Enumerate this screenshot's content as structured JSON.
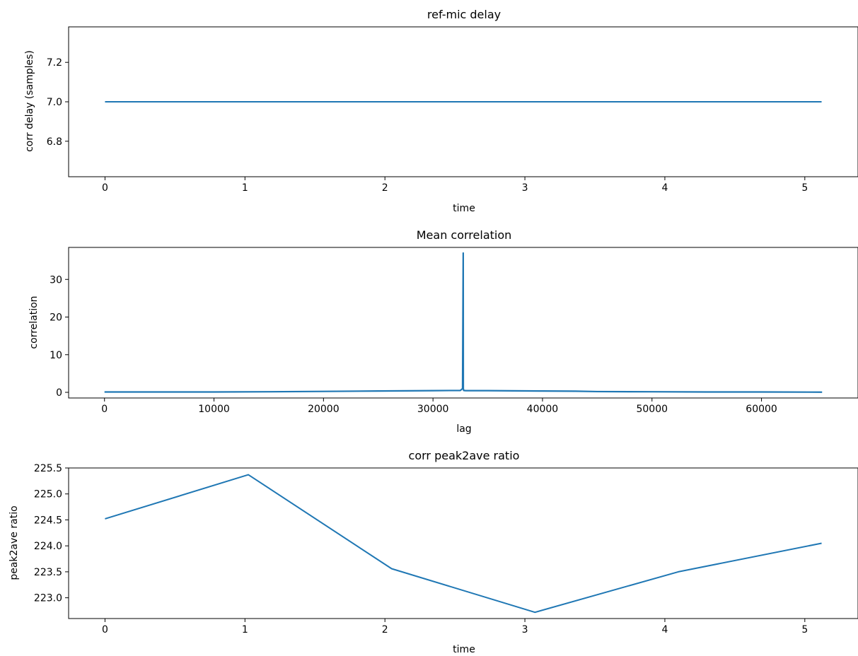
{
  "chart_data": [
    {
      "type": "line",
      "title": "ref-mic delay",
      "xlabel": "time",
      "ylabel": "corr delay (samples)",
      "xlim": [
        -0.26,
        5.38
      ],
      "ylim": [
        6.62,
        7.38
      ],
      "xticks": [
        0,
        1,
        2,
        3,
        4,
        5
      ],
      "yticks": [
        6.8,
        7.0,
        7.2
      ],
      "xtick_labels": [
        "0",
        "1",
        "2",
        "3",
        "4",
        "5"
      ],
      "ytick_labels": [
        "6.8",
        "7.0",
        "7.2"
      ],
      "grid": false,
      "color": "#1f77b4",
      "series": [
        {
          "x": [
            0,
            1.024,
            2.048,
            3.072,
            4.096,
            5.12
          ],
          "y": [
            7.0,
            7.0,
            7.0,
            7.0,
            7.0,
            7.0
          ]
        }
      ]
    },
    {
      "type": "line",
      "title": "Mean correlation",
      "xlabel": "lag",
      "ylabel": "correlation",
      "xlim": [
        -3277,
        68813
      ],
      "ylim": [
        -1.5,
        38.5
      ],
      "xticks": [
        0,
        10000,
        20000,
        30000,
        40000,
        50000,
        60000
      ],
      "yticks": [
        0,
        10,
        20,
        30
      ],
      "xtick_labels": [
        "0",
        "10000",
        "20000",
        "30000",
        "40000",
        "50000",
        "60000"
      ],
      "ytick_labels": [
        "0",
        "10",
        "20",
        "30"
      ],
      "grid": false,
      "color": "#1f77b4",
      "series": [
        {
          "x": [
            0,
            5000,
            10000,
            15000,
            20000,
            25000,
            30000,
            32500,
            32700,
            32760,
            32770,
            32800,
            33000,
            35000,
            40000,
            43000,
            45000,
            50000,
            55000,
            60000,
            65535
          ],
          "y": [
            0.1,
            0.1,
            0.1,
            0.15,
            0.25,
            0.35,
            0.45,
            0.5,
            1.0,
            37.0,
            1.0,
            0.5,
            0.45,
            0.45,
            0.35,
            0.3,
            0.2,
            0.15,
            0.1,
            0.1,
            0.05
          ]
        }
      ]
    },
    {
      "type": "line",
      "title": "corr peak2ave ratio",
      "xlabel": "time",
      "ylabel": "peak2ave ratio",
      "xlim": [
        -0.26,
        5.38
      ],
      "ylim": [
        222.6,
        225.5
      ],
      "xticks": [
        0,
        1,
        2,
        3,
        4,
        5
      ],
      "yticks": [
        223.0,
        223.5,
        224.0,
        224.5,
        225.0,
        225.5
      ],
      "xtick_labels": [
        "0",
        "1",
        "2",
        "3",
        "4",
        "5"
      ],
      "ytick_labels": [
        "223.0",
        "223.5",
        "224.0",
        "224.5",
        "225.0",
        "225.5"
      ],
      "grid": false,
      "color": "#1f77b4",
      "series": [
        {
          "x": [
            0,
            1.024,
            2.048,
            3.072,
            4.096,
            5.12
          ],
          "y": [
            224.52,
            225.37,
            223.56,
            222.72,
            223.5,
            224.05
          ]
        }
      ]
    }
  ]
}
